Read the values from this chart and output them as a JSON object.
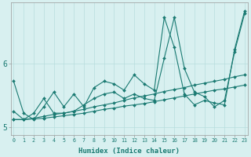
{
  "xlabel": "Humidex (Indice chaleur)",
  "bg_color": "#d8f0f0",
  "line_color": "#1a7a72",
  "grid_color": "#b8dede",
  "x": [
    0,
    1,
    2,
    3,
    4,
    5,
    6,
    7,
    8,
    9,
    10,
    11,
    12,
    13,
    14,
    15,
    16,
    17,
    18,
    19,
    20,
    21,
    22,
    23
  ],
  "line1": [
    5.72,
    5.22,
    5.12,
    5.32,
    5.55,
    5.32,
    5.52,
    5.32,
    5.62,
    5.72,
    5.68,
    5.58,
    5.82,
    5.68,
    5.58,
    6.72,
    6.25,
    5.52,
    5.35,
    5.42,
    5.38,
    5.35,
    6.22,
    6.82
  ],
  "line2": [
    5.25,
    5.12,
    5.22,
    5.45,
    5.22,
    5.22,
    5.25,
    5.35,
    5.45,
    5.52,
    5.55,
    5.45,
    5.52,
    5.45,
    5.42,
    6.08,
    6.72,
    5.92,
    5.55,
    5.48,
    5.32,
    5.42,
    6.18,
    6.78
  ],
  "line3": [
    5.12,
    5.12,
    5.13,
    5.14,
    5.16,
    5.18,
    5.2,
    5.22,
    5.25,
    5.28,
    5.3,
    5.33,
    5.35,
    5.37,
    5.4,
    5.43,
    5.46,
    5.49,
    5.52,
    5.55,
    5.58,
    5.6,
    5.63,
    5.66
  ],
  "line4": [
    5.12,
    5.12,
    5.14,
    5.17,
    5.2,
    5.22,
    5.25,
    5.28,
    5.32,
    5.35,
    5.38,
    5.42,
    5.46,
    5.49,
    5.52,
    5.56,
    5.59,
    5.62,
    5.66,
    5.69,
    5.72,
    5.75,
    5.79,
    5.82
  ],
  "ylim": [
    4.88,
    6.95
  ],
  "yticks": [
    5.0,
    6.0
  ],
  "xlim": [
    -0.3,
    23.3
  ]
}
